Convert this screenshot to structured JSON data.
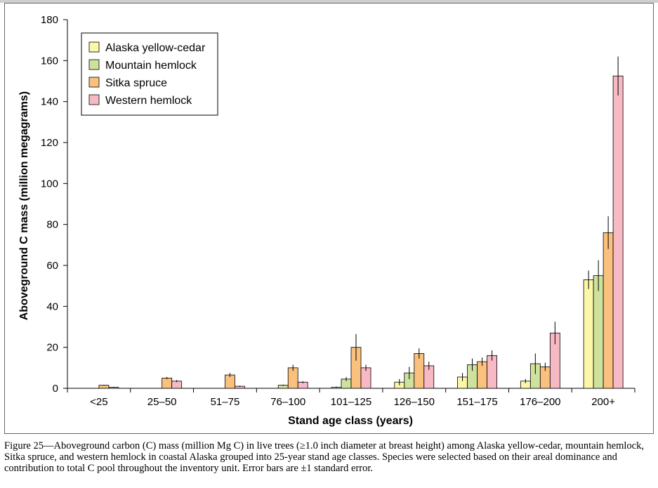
{
  "chart_data": {
    "type": "bar",
    "xlabel": "Stand age class (years)",
    "ylabel": "Aboveground C mass (million megagrams)",
    "ylim": [
      0,
      180
    ],
    "yticks": [
      0,
      20,
      40,
      60,
      80,
      100,
      120,
      140,
      160,
      180
    ],
    "grid": false,
    "legend_position": "top-left",
    "categories": [
      "<25",
      "25–50",
      "51–75",
      "76–100",
      "101–125",
      "126–150",
      "151–175",
      "176–200",
      "200+"
    ],
    "series": [
      {
        "name": "Alaska yellow-cedar",
        "color": "#fbf6a8",
        "values": [
          0,
          0,
          0,
          0,
          0.5,
          3,
          5.5,
          3.5,
          53
        ],
        "errors": [
          0,
          0,
          0,
          0,
          0.3,
          1.5,
          2,
          1,
          4.5
        ]
      },
      {
        "name": "Mountain hemlock",
        "color": "#cfe29d",
        "values": [
          0,
          0,
          0,
          1.5,
          4.5,
          7.5,
          11.5,
          12,
          55
        ],
        "errors": [
          0,
          0,
          0,
          0.3,
          1,
          3,
          3,
          5,
          7.5
        ]
      },
      {
        "name": "Sitka spruce",
        "color": "#f9c07e",
        "values": [
          1.5,
          5,
          6.5,
          10,
          20,
          17,
          13,
          10.5,
          76
        ],
        "errors": [
          0.2,
          0.5,
          1,
          1.5,
          6.5,
          2.5,
          2,
          2,
          8
        ]
      },
      {
        "name": "Western hemlock",
        "color": "#f7b9c4",
        "values": [
          0.5,
          3.5,
          1,
          3,
          10,
          11,
          16,
          27,
          152.5
        ],
        "errors": [
          0.2,
          0.5,
          0.3,
          0.5,
          1.5,
          2,
          2.5,
          5.5,
          9.5
        ]
      }
    ]
  },
  "caption": "Figure 25—Aboveground carbon (C) mass (million Mg C) in live trees (≥1.0 inch diameter at breast height) among Alaska yellow-cedar, mountain hemlock, Sitka spruce, and western hemlock in coastal Alaska grouped into 25-year stand age classes. Species were selected based on their areal dominance and contribution to total C pool throughout the inventory unit. Error bars are ±1 standard error."
}
